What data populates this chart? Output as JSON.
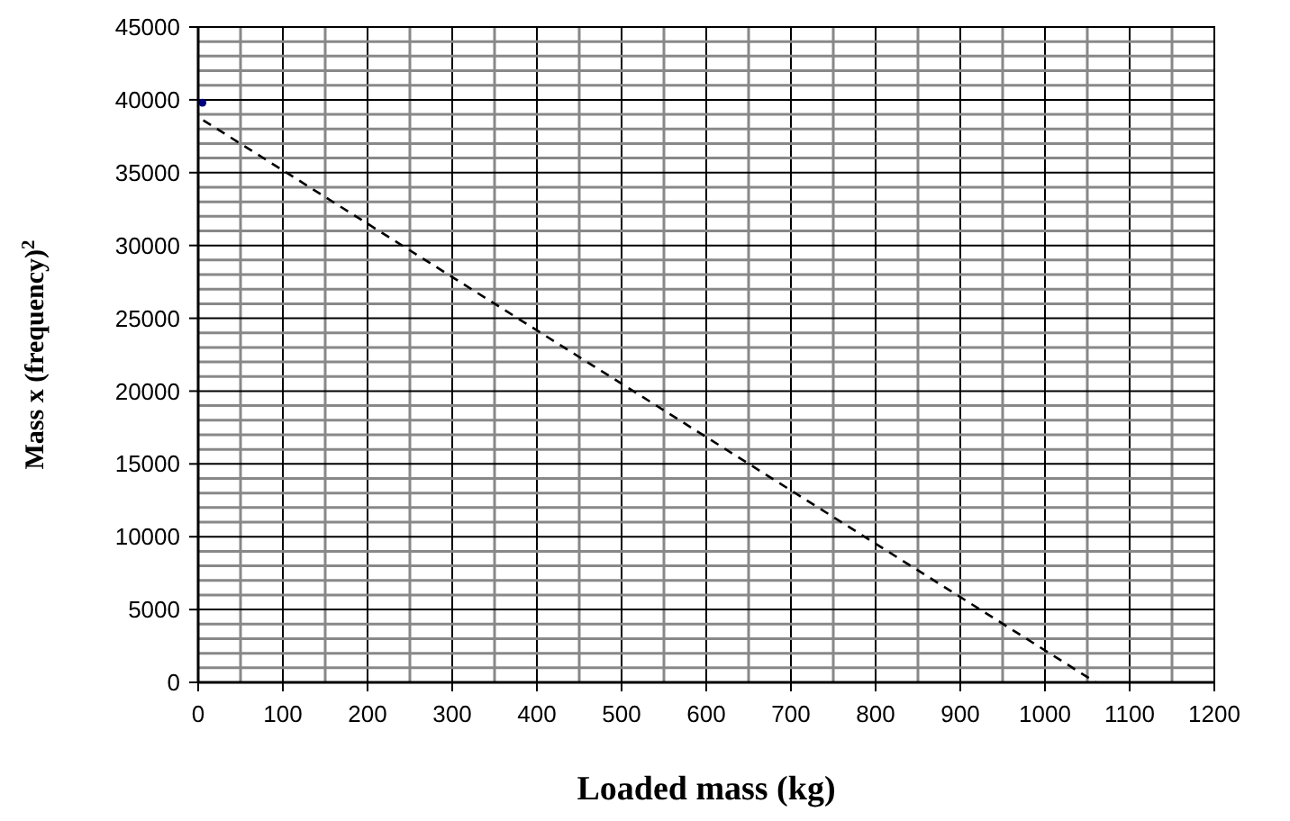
{
  "chart_data": {
    "type": "line",
    "xlabel": "Loaded mass (kg)",
    "ylabel": "Mass x (frequency)$^{2}$",
    "xlim": [
      0,
      1200
    ],
    "xticks": [
      0,
      {
        "value": 50,
        "label": null
      },
      100,
      {
        "value": 150,
        "label": null
      },
      200,
      {
        "value": 250,
        "label": null
      },
      300,
      {
        "value": 350,
        "label": null
      },
      400,
      {
        "value": 450,
        "label": null
      },
      500,
      {
        "value": 550,
        "label": null
      },
      600,
      {
        "value": 650,
        "label": null
      },
      700,
      {
        "value": 750,
        "label": null
      },
      800,
      {
        "value": 850,
        "label": null
      },
      900,
      {
        "value": 950,
        "label": null
      },
      1000,
      {
        "value": 1050,
        "label": null
      },
      1100,
      {
        "value": 1150,
        "label": null
      },
      1200
    ],
    "ylim": [
      0,
      45000
    ],
    "yticks": [
      0,
      {
        "value": 1000,
        "label": null
      },
      {
        "value": 2000,
        "label": null
      },
      {
        "value": 3000,
        "label": null
      },
      {
        "value": 4000,
        "label": null
      },
      5000,
      {
        "value": 6000,
        "label": null
      },
      {
        "value": 7000,
        "label": null
      },
      {
        "value": 8000,
        "label": null
      },
      {
        "value": 9000,
        "label": null
      },
      10000,
      {
        "value": 11000,
        "label": null
      },
      {
        "value": 12000,
        "label": null
      },
      {
        "value": 13000,
        "label": null
      },
      {
        "value": 14000,
        "label": null
      },
      15000,
      {
        "value": 16000,
        "label": null
      },
      {
        "value": 17000,
        "label": null
      },
      {
        "value": 18000,
        "label": null
      },
      {
        "value": 19000,
        "label": null
      },
      20000,
      {
        "value": 21000,
        "label": null
      },
      {
        "value": 22000,
        "label": null
      },
      {
        "value": 23000,
        "label": null
      },
      {
        "value": 24000,
        "label": null
      },
      25000,
      {
        "value": 26000,
        "label": null
      },
      {
        "value": 27000,
        "label": null
      },
      {
        "value": 28000,
        "label": null
      },
      {
        "value": 29000,
        "label": null
      },
      30000,
      {
        "value": 31000,
        "label": null
      },
      {
        "value": 32000,
        "label": null
      },
      {
        "value": 33000,
        "label": null
      },
      {
        "value": 34000,
        "label": null
      },
      35000,
      {
        "value": 36000,
        "label": null
      },
      {
        "value": 37000,
        "label": null
      },
      {
        "value": 38000,
        "label": null
      },
      {
        "value": 39000,
        "label": null
      },
      40000,
      {
        "value": 41000,
        "label": null
      },
      {
        "value": 42000,
        "label": null
      },
      {
        "value": 43000,
        "label": null
      },
      {
        "value": 44000,
        "label": null
      },
      45000
    ],
    "grid": true,
    "series": [
      {
        "type": "scatter",
        "color": "#000080",
        "x": [
          5
        ],
        "values": [
          39800
        ]
      },
      {
        "type": "line",
        "color": "#000000",
        "line_style": "dashed",
        "x": [
          6,
          1060
        ],
        "values": [
          38600,
          0
        ]
      }
    ]
  }
}
